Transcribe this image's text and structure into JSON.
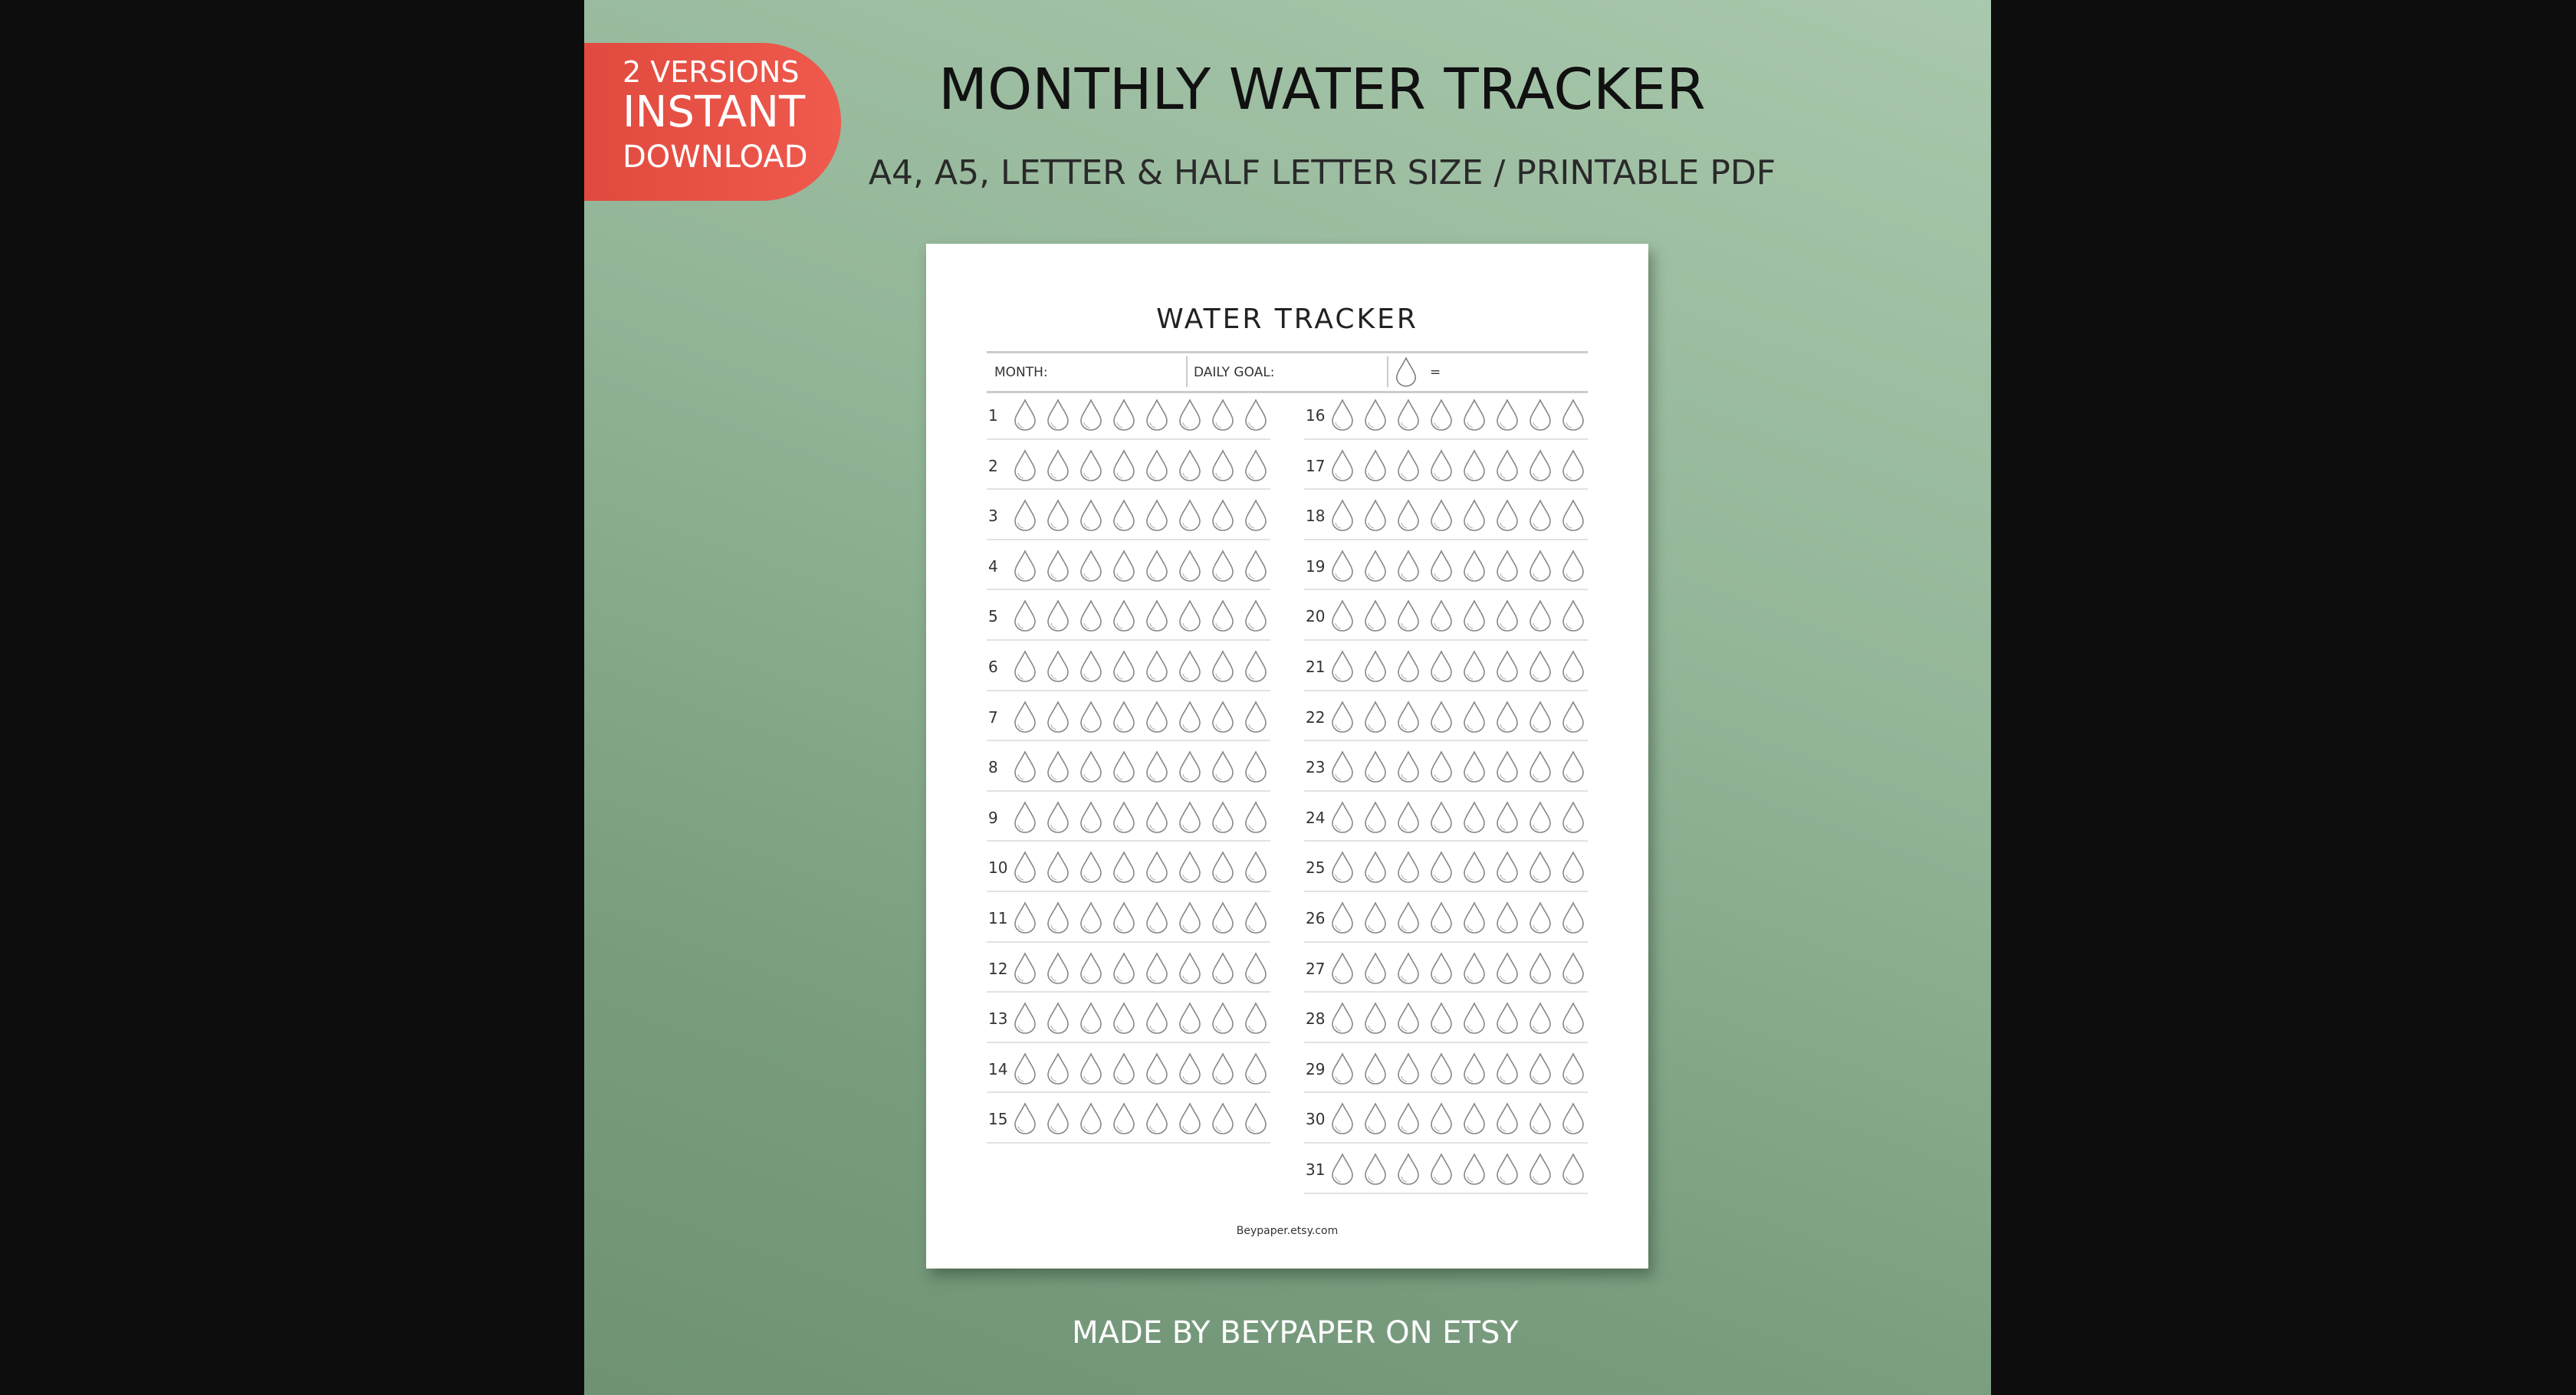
{
  "badge": {
    "line1": "2 VERSIONS",
    "line2": "INSTANT",
    "line3": "DOWNLOAD",
    "color": "#e9544a"
  },
  "title": "MONTHLY WATER TRACKER",
  "subtitle": "A4, A5, LETTER & HALF LETTER SIZE / PRINTABLE PDF",
  "footer": "MADE BY BEYPAPER ON ETSY",
  "sheet": {
    "title": "WATER TRACKER",
    "month_label": "MONTH:",
    "goal_label": "DAILY GOAL:",
    "equals": "=",
    "drop_icon": "water-drop-icon",
    "drops_per_day": 8,
    "days_left": [
      "1",
      "2",
      "3",
      "4",
      "5",
      "6",
      "7",
      "8",
      "9",
      "10",
      "11",
      "12",
      "13",
      "14",
      "15"
    ],
    "days_right": [
      "16",
      "17",
      "18",
      "19",
      "20",
      "21",
      "22",
      "23",
      "24",
      "25",
      "26",
      "27",
      "28",
      "29",
      "30",
      "31"
    ],
    "brand": "Beypaper.etsy.com"
  }
}
